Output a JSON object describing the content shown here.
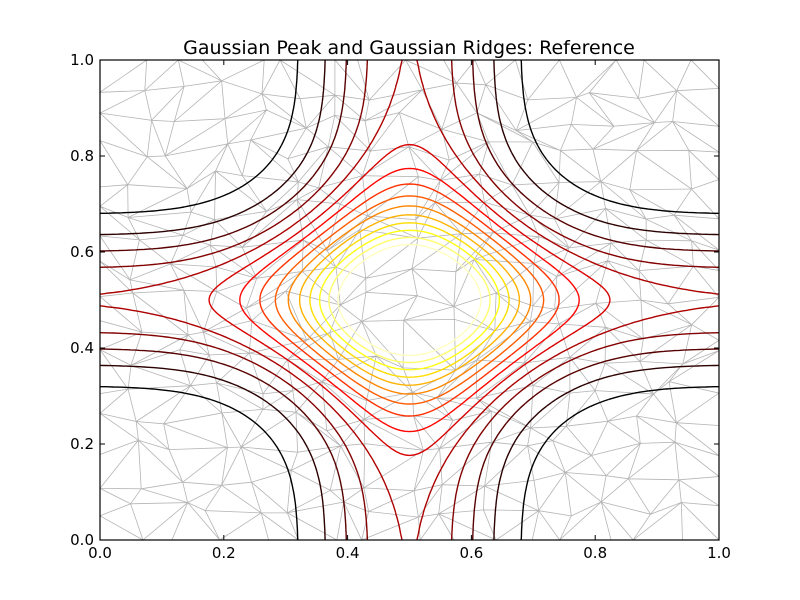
{
  "chart_data": {
    "type": "contour",
    "title": "Gaussian Peak and Gaussian Ridges: Reference",
    "xlabel": "",
    "ylabel": "",
    "xlim": [
      0.0,
      1.0
    ],
    "ylim": [
      0.0,
      1.0
    ],
    "x_ticks": [
      "0.0",
      "0.2",
      "0.4",
      "0.6",
      "0.8",
      "1.0"
    ],
    "y_ticks": [
      "0.0",
      "0.2",
      "0.4",
      "0.6",
      "0.8",
      "1.0"
    ],
    "function": {
      "description_from_title": "Gaussian Peak and Gaussian Ridges",
      "peak_center": [
        0.5,
        0.5
      ],
      "peak_width": 0.15,
      "ridge_x_center": 0.5,
      "ridge_y_center": 0.5,
      "ridge_width": 0.1
    },
    "levels": [
      0.1,
      0.2,
      0.3,
      0.4,
      0.5,
      0.6,
      0.7,
      0.8,
      0.9,
      1.0,
      1.1,
      1.2,
      1.3,
      1.4,
      1.5
    ],
    "colormap": "hot",
    "mesh": {
      "type": "delaunay-triangulation",
      "points": 300,
      "color": "#a8a8a8"
    },
    "grid": false,
    "legend": "none"
  }
}
